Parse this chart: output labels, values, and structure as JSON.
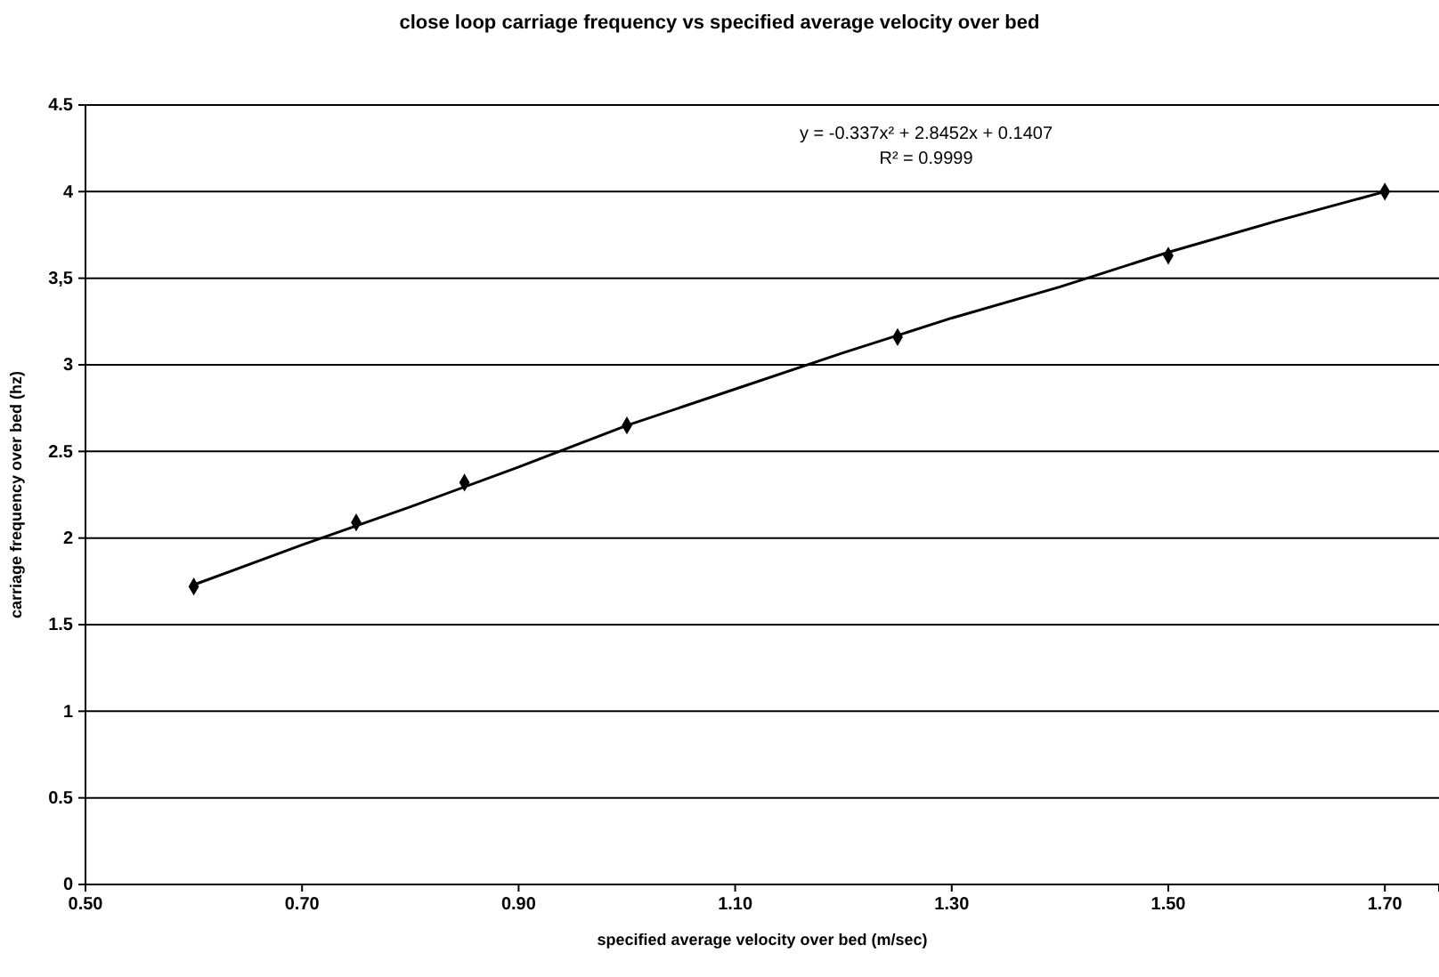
{
  "chart_data": {
    "type": "scatter",
    "title": "close loop carriage frequency vs specified average velocity over bed",
    "xlabel": "specified average velocity over bed (m/sec)",
    "ylabel": "carriage frequency over bed (hz)",
    "annotations": [
      "y = -0.337x² + 2.8452x + 0.1407",
      "R² = 0.9999"
    ],
    "xlim": [
      0.5,
      1.75
    ],
    "xticks": [
      {
        "value": 0.5,
        "label": "0.50"
      },
      {
        "value": 0.7,
        "label": "0.70"
      },
      {
        "value": 0.9,
        "label": "0.90"
      },
      {
        "value": 1.1,
        "label": "1.10"
      },
      {
        "value": 1.3,
        "label": "1.30"
      },
      {
        "value": 1.5,
        "label": "1.50"
      },
      {
        "value": 1.7,
        "label": "1.70"
      }
    ],
    "ylim": [
      0,
      4.5
    ],
    "yticks": [
      0,
      0.5,
      1,
      1.5,
      2,
      2.5,
      3,
      {
        "value": 3.5,
        "label": "3,5"
      },
      4,
      4.5
    ],
    "grid": "y",
    "series": [
      {
        "color": "#000000",
        "marker": "diamond",
        "x": [
          0.6,
          0.75,
          0.85,
          1.0,
          1.25,
          1.5,
          1.7
        ],
        "values": [
          1.72,
          2.09,
          2.32,
          2.65,
          3.16,
          3.63,
          4.0
        ]
      },
      {
        "type": "line",
        "color": "#000000",
        "marker": "none",
        "line_style": "solid",
        "x": [
          0.6,
          0.7,
          0.8,
          0.9,
          1.0,
          1.1,
          1.2,
          1.3,
          1.4,
          1.5,
          1.6,
          1.7
        ],
        "values": [
          1.73,
          1.96,
          2.18,
          2.41,
          2.65,
          2.86,
          3.07,
          3.27,
          3.45,
          3.65,
          3.83,
          4.0
        ]
      }
    ]
  }
}
